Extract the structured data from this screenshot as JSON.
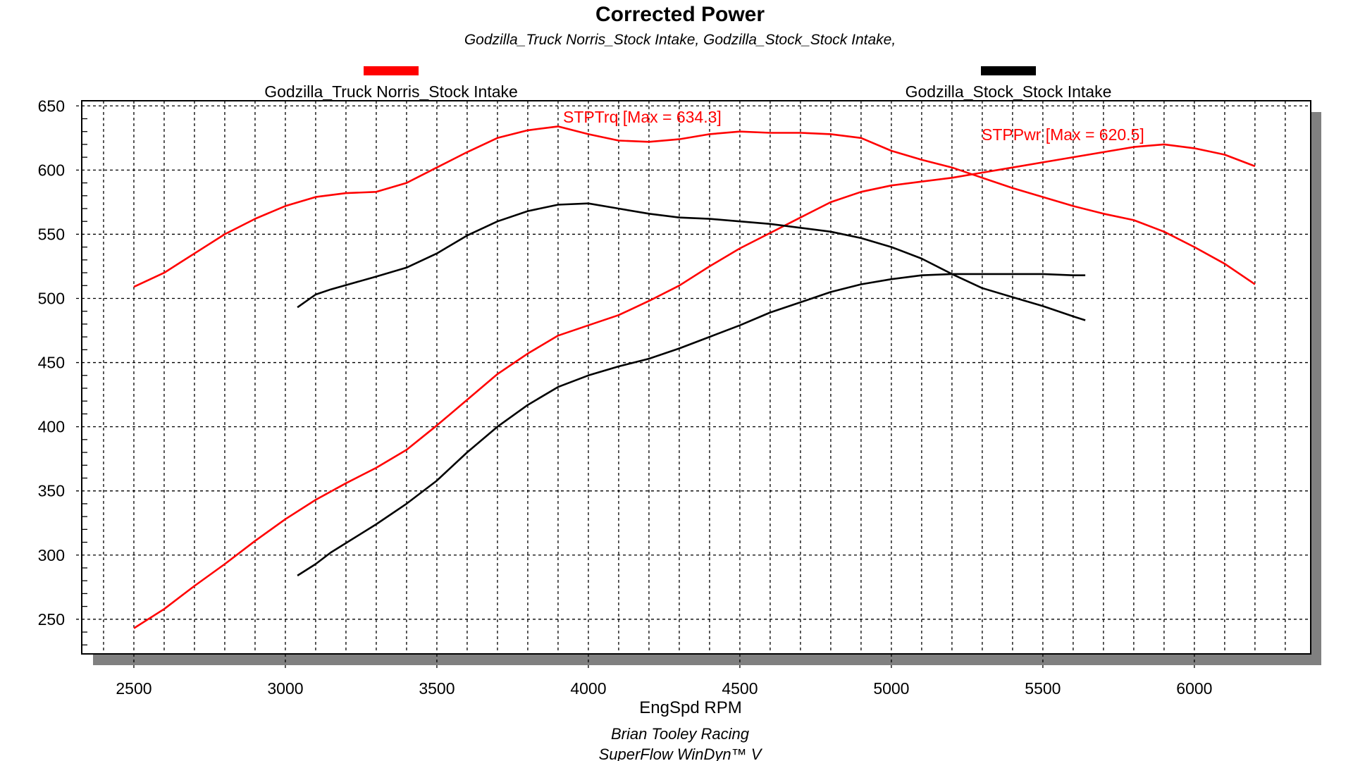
{
  "chart_data": {
    "type": "line",
    "title": "Corrected Power",
    "subtitle": "Godzilla_Truck Norris_Stock Intake, Godzilla_Stock_Stock Intake,",
    "xlabel": "EngSpd RPM",
    "ylabel": "",
    "xlim": [
      2328,
      6384
    ],
    "ylim": [
      223,
      654
    ],
    "x_ticks": [
      2500,
      3000,
      3500,
      4000,
      4500,
      5000,
      5500,
      6000
    ],
    "y_ticks": [
      250,
      300,
      350,
      400,
      450,
      500,
      550,
      600,
      650
    ],
    "grid": true,
    "legend_placement": "top",
    "legend": [
      {
        "name": "Godzilla_Truck Norris_Stock Intake",
        "color": "#ff0000"
      },
      {
        "name": "Godzilla_Stock_Stock Intake",
        "color": "#000000"
      }
    ],
    "annotations": [
      {
        "text": "STPTrq [Max = 634.3]",
        "color": "#ff0000"
      },
      {
        "text": "STPPwr [Max = 620.5]",
        "color": "#ff0000"
      }
    ],
    "series": [
      {
        "run": "Godzilla_Truck Norris_Stock Intake",
        "quantity": "STPTrq",
        "color": "#ff0000",
        "x": [
          2500,
          2600,
          2700,
          2800,
          2900,
          3000,
          3100,
          3200,
          3300,
          3400,
          3500,
          3600,
          3700,
          3800,
          3900,
          4000,
          4100,
          4200,
          4300,
          4400,
          4500,
          4600,
          4700,
          4800,
          4900,
          5000,
          5100,
          5200,
          5300,
          5400,
          5500,
          5600,
          5700,
          5800,
          5900,
          6000,
          6100,
          6200
        ],
        "y": [
          509,
          520,
          535,
          550,
          562,
          572,
          579,
          582,
          583,
          590,
          602,
          614,
          625,
          631,
          634,
          628,
          623,
          622,
          624,
          628,
          630,
          629,
          629,
          628,
          625,
          615,
          608,
          602,
          594,
          586,
          579,
          572,
          566,
          561,
          552,
          540,
          527,
          511
        ]
      },
      {
        "run": "Godzilla_Truck Norris_Stock Intake",
        "quantity": "STPPwr",
        "color": "#ff0000",
        "x": [
          2500,
          2600,
          2700,
          2800,
          2900,
          3000,
          3100,
          3200,
          3300,
          3400,
          3500,
          3600,
          3700,
          3800,
          3900,
          4000,
          4100,
          4200,
          4300,
          4400,
          4500,
          4600,
          4700,
          4800,
          4900,
          5000,
          5100,
          5200,
          5300,
          5400,
          5500,
          5600,
          5700,
          5800,
          5900,
          6000,
          6100,
          6200
        ],
        "y": [
          243,
          258,
          276,
          293,
          311,
          328,
          343,
          356,
          368,
          382,
          401,
          421,
          441,
          457,
          471,
          479,
          487,
          498,
          510,
          525,
          539,
          551,
          563,
          575,
          583,
          588,
          591,
          594,
          598,
          602,
          606,
          610,
          614,
          618,
          620,
          617,
          612,
          603
        ]
      },
      {
        "run": "Godzilla_Stock_Stock Intake",
        "quantity": "STPTrq",
        "color": "#000000",
        "x": [
          3040,
          3100,
          3150,
          3300,
          3400,
          3500,
          3600,
          3700,
          3800,
          3900,
          4000,
          4100,
          4200,
          4300,
          4400,
          4500,
          4600,
          4700,
          4800,
          4900,
          5000,
          5100,
          5200,
          5300,
          5400,
          5500,
          5600,
          5640
        ],
        "y": [
          493,
          503,
          507,
          517,
          524,
          535,
          549,
          560,
          568,
          573,
          574,
          570,
          566,
          563,
          562,
          560,
          558,
          555,
          552,
          547,
          540,
          531,
          519,
          508,
          501,
          494,
          486,
          483
        ]
      },
      {
        "run": "Godzilla_Stock_Stock Intake",
        "quantity": "STPPwr",
        "color": "#000000",
        "x": [
          3040,
          3100,
          3150,
          3300,
          3400,
          3500,
          3600,
          3700,
          3800,
          3900,
          4000,
          4100,
          4200,
          4300,
          4400,
          4500,
          4600,
          4700,
          4800,
          4900,
          5000,
          5100,
          5200,
          5300,
          5400,
          5500,
          5600,
          5640
        ],
        "y": [
          284,
          293,
          302,
          324,
          340,
          358,
          380,
          400,
          417,
          431,
          440,
          447,
          453,
          461,
          470,
          479,
          489,
          497,
          505,
          511,
          515,
          518,
          519,
          519,
          519,
          519,
          518,
          518
        ]
      }
    ]
  },
  "footer": {
    "line1": "Brian Tooley Racing",
    "line2": "SuperFlow WinDyn™ V"
  }
}
